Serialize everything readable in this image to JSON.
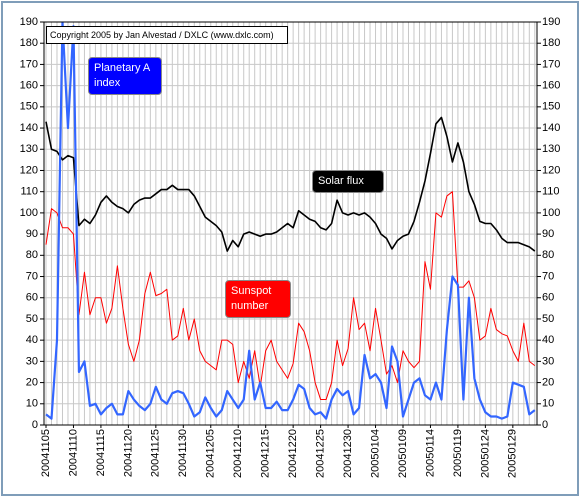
{
  "chart_data": {
    "type": "line",
    "annotation": "Copyright 2005 by Jan Alvestad / DXLC (www.dxlc.com)",
    "categories": [
      "20041105",
      null,
      null,
      null,
      null,
      "20041110",
      null,
      null,
      null,
      null,
      "20041115",
      null,
      null,
      null,
      null,
      "20041120",
      null,
      null,
      null,
      null,
      "20041125",
      null,
      null,
      null,
      null,
      "20041130",
      null,
      null,
      null,
      null,
      "20041205",
      null,
      null,
      null,
      null,
      "20041210",
      null,
      null,
      null,
      null,
      "20041215",
      null,
      null,
      null,
      null,
      "20041220",
      null,
      null,
      null,
      null,
      "20041225",
      null,
      null,
      null,
      null,
      "20041230",
      null,
      null,
      null,
      null,
      "20050104",
      null,
      null,
      null,
      null,
      "20050109",
      null,
      null,
      null,
      null,
      "20050114",
      null,
      null,
      null,
      null,
      "20050119",
      null,
      null,
      null,
      null,
      "20050124",
      null,
      null,
      null,
      null,
      "20050129",
      null,
      null,
      null,
      null
    ],
    "series": [
      {
        "name": "Solar flux",
        "color": "#000000",
        "values": [
          143,
          130,
          129,
          125,
          127,
          126,
          94,
          97,
          95,
          99,
          105,
          108,
          105,
          103,
          102,
          100,
          104,
          106,
          107,
          107,
          109,
          111,
          111,
          113,
          111,
          111,
          111,
          108,
          103,
          98,
          96,
          94,
          91,
          82,
          87,
          84,
          90,
          91,
          90,
          89,
          90,
          90,
          91,
          93,
          95,
          93,
          101,
          99,
          97,
          96,
          93,
          92,
          95,
          106,
          100,
          99,
          100,
          99,
          100,
          98,
          95,
          90,
          88,
          83,
          87,
          89,
          90,
          96,
          105,
          115,
          128,
          142,
          145,
          136,
          124,
          133,
          124,
          110,
          104,
          96,
          95,
          95,
          92,
          88,
          86,
          86,
          86,
          85,
          84,
          82
        ]
      },
      {
        "name": "Sunspot number",
        "color": "#ff0000",
        "values": [
          85,
          102,
          100,
          93,
          93,
          90,
          52,
          72,
          52,
          60,
          60,
          48,
          55,
          75,
          55,
          38,
          30,
          40,
          62,
          72,
          61,
          62,
          64,
          40,
          42,
          55,
          40,
          50,
          35,
          30,
          28,
          26,
          40,
          40,
          38,
          20,
          30,
          22,
          35,
          18,
          35,
          40,
          30,
          26,
          22,
          29,
          48,
          44,
          35,
          20,
          12,
          12,
          20,
          40,
          28,
          36,
          60,
          45,
          48,
          35,
          55,
          40,
          24,
          28,
          20,
          35,
          30,
          27,
          30,
          77,
          64,
          100,
          98,
          108,
          110,
          65,
          65,
          68,
          60,
          40,
          42,
          55,
          45,
          43,
          42,
          35,
          30,
          48,
          30,
          28
        ]
      },
      {
        "name": "Planetary A index",
        "color": "#3366ff",
        "values": [
          5,
          3,
          40,
          190,
          140,
          188,
          25,
          30,
          9,
          10,
          5,
          8,
          10,
          5,
          5,
          16,
          12,
          9,
          7,
          10,
          18,
          12,
          10,
          15,
          16,
          15,
          10,
          4,
          6,
          13,
          8,
          4,
          7,
          16,
          12,
          8,
          12,
          35,
          12,
          20,
          8,
          8,
          11,
          7,
          7,
          12,
          19,
          17,
          8,
          5,
          6,
          3,
          12,
          17,
          14,
          16,
          5,
          8,
          33,
          22,
          24,
          20,
          8,
          37,
          30,
          4,
          12,
          20,
          22,
          14,
          12,
          20,
          12,
          45,
          70,
          66,
          12,
          60,
          22,
          12,
          6,
          4,
          4,
          3,
          4,
          20,
          19,
          18,
          5,
          7
        ]
      }
    ],
    "ylim": [
      0,
      190
    ],
    "yticks": [
      0,
      10,
      20,
      30,
      40,
      50,
      60,
      70,
      80,
      90,
      100,
      110,
      120,
      130,
      140,
      150,
      160,
      170,
      180,
      190
    ],
    "y2lim": [
      0,
      190
    ],
    "y2ticks": [
      0,
      10,
      20,
      30,
      40,
      50,
      60,
      70,
      80,
      90,
      100,
      110,
      120,
      130,
      140,
      150,
      160,
      170,
      180,
      190
    ],
    "grid": true
  }
}
